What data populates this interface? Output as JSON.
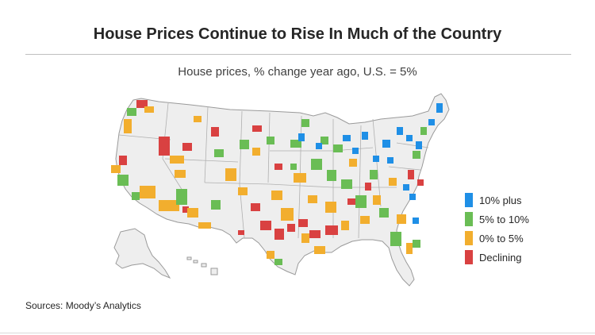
{
  "title": "House Prices Continue to Rise In Much of the Country",
  "subtitle": "House prices, % change year ago, U.S. = 5%",
  "source": "Sources:  Moody’s Analytics",
  "legend": [
    {
      "label": "10% plus",
      "color": "#1f8fe6"
    },
    {
      "label": "5% to 10%",
      "color": "#6abd55"
    },
    {
      "label": "0% to 5%",
      "color": "#f2ae2e"
    },
    {
      "label": "Declining",
      "color": "#d94141"
    }
  ],
  "colors": {
    "land": "#eeeeee",
    "border": "#9a9a9a"
  }
}
